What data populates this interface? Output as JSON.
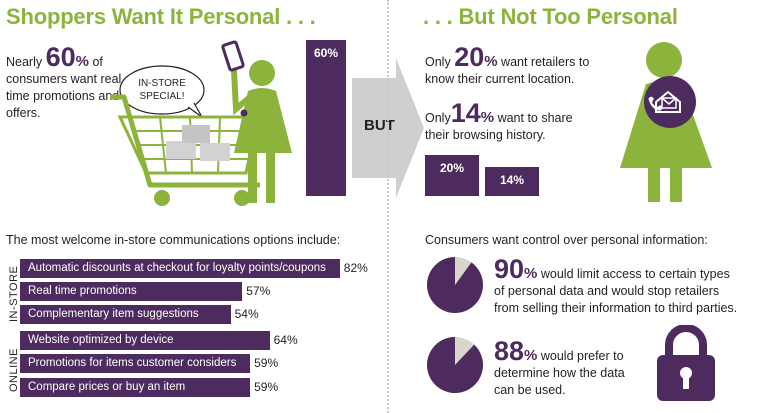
{
  "left_panel": {
    "title": "Shoppers Want It Personal . . .",
    "intro_prefix": "Nearly ",
    "intro_big": "60",
    "intro_suffix": "%",
    "intro_rest": " of consumers want real time promotions and offers.",
    "bubble_text_1": "IN-STORE",
    "bubble_text_2": "SPECIAL!",
    "section_heading": "The most welcome in-store communications options include:"
  },
  "middle": {
    "but_label": "BUT"
  },
  "right_panel": {
    "title": ". . . But Not Too Personal",
    "location_prefix": "Only ",
    "location_big": "20",
    "location_suffix": "%",
    "location_rest_1": " want retailers to",
    "location_rest_2": "know their current location.",
    "browsing_prefix": "Only",
    "browsing_big": "14",
    "browsing_suffix": "%",
    "browsing_rest_1": " want to share",
    "browsing_rest_2": "their browsing history.",
    "control_heading": "Consumers want control over personal information:",
    "limit_big": "90",
    "limit_suffix": "%",
    "limit_rest_1": " would limit access to certain types",
    "limit_rest_2": "of personal data and would stop retailers",
    "limit_rest_3": "from selling their information to third parties.",
    "determine_big": "88",
    "determine_suffix": "%",
    "determine_rest_1": " would prefer to",
    "determine_rest_2": "determine how the data",
    "determine_rest_3": "can be used."
  },
  "colors": {
    "green": "#8cb43d",
    "purple": "#4e2b5e",
    "grey": "#cfcfcf",
    "pie_light": "#d9d6cc"
  },
  "chart_data": [
    {
      "type": "bar",
      "orientation": "vertical",
      "categories": [
        "real time promotions and offers"
      ],
      "values": [
        60
      ],
      "labels": [
        "60%"
      ],
      "ylim": [
        0,
        100
      ]
    },
    {
      "type": "bar",
      "orientation": "vertical",
      "categories": [
        "current location",
        "browsing history"
      ],
      "values": [
        20,
        14
      ],
      "labels": [
        "20%",
        "14%"
      ],
      "ylim": [
        0,
        100
      ]
    },
    {
      "type": "bar",
      "orientation": "horizontal",
      "groups": [
        {
          "name": "IN-STORE",
          "categories": [
            "Automatic discounts at checkout for loyalty points/coupons",
            "Real time promotions",
            "Complementary item suggestions"
          ],
          "values": [
            82,
            57,
            54
          ],
          "labels": [
            "82%",
            "57%",
            "54%"
          ]
        },
        {
          "name": "ONLINE",
          "categories": [
            "Website optimized by device",
            "Promotions for items customer considers",
            "Compare prices or buy an item"
          ],
          "values": [
            64,
            59,
            59
          ],
          "labels": [
            "64%",
            "59%",
            "59%"
          ]
        }
      ],
      "xlim": [
        0,
        100
      ]
    },
    {
      "type": "pie",
      "slices": [
        {
          "name": "would limit access",
          "value": 90
        },
        {
          "name": "other",
          "value": 10
        }
      ]
    },
    {
      "type": "pie",
      "slices": [
        {
          "name": "would prefer to determine",
          "value": 88
        },
        {
          "name": "other",
          "value": 12
        }
      ]
    }
  ]
}
